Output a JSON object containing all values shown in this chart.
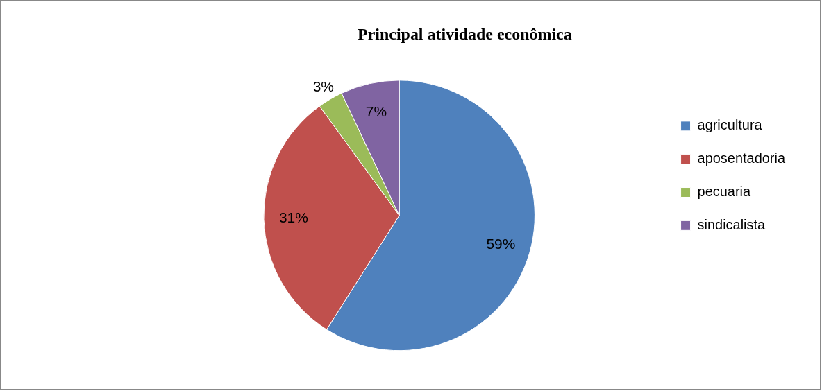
{
  "chart_data": {
    "type": "pie",
    "title": "Principal atividade econômica",
    "categories": [
      "agricultura",
      "aposentadoria",
      "pecuaria",
      "sindicalista"
    ],
    "values": [
      59,
      31,
      3,
      7
    ],
    "colors": [
      "#4f81bd",
      "#c0504d",
      "#9bbb59",
      "#8064a2"
    ],
    "value_labels": [
      "59%",
      "31%",
      "3%",
      "7%"
    ],
    "legend": "right"
  }
}
